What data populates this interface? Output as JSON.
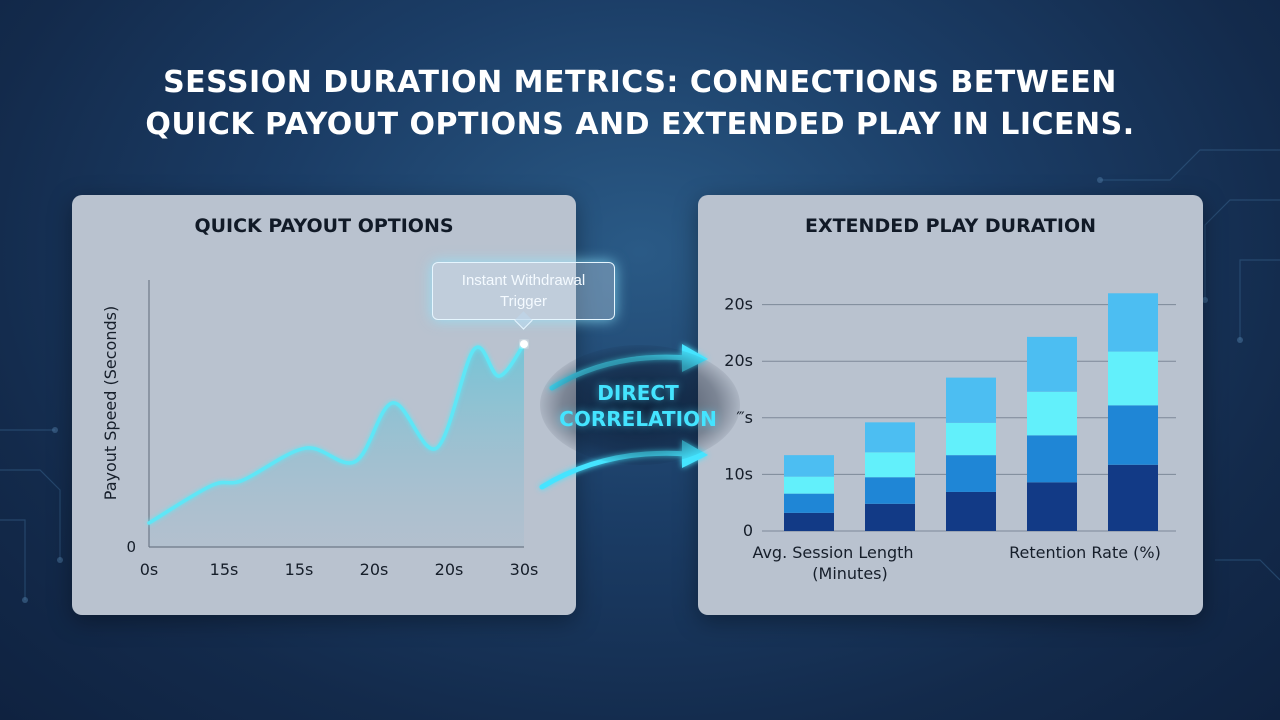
{
  "title": {
    "line1": "SESSION DURATION METRICS: CONNECTIONS BETWEEN",
    "line2": "QUICK PAYOUT OPTIONS AND EXTENDED PLAY IN LICENS."
  },
  "connector": {
    "line1": "DIRECT",
    "line2": "CORRELATION",
    "color": "#44e4ff"
  },
  "chart_data": [
    {
      "type": "area",
      "title": "QUICK PAYOUT OPTIONS",
      "xlabel": "",
      "ylabel": "Payout Speed (Seconds)",
      "x_tick_labels": [
        "0s",
        "15s",
        "15s",
        "20s",
        "20s",
        "30s"
      ],
      "y_tick_labels": [
        "0"
      ],
      "ylim": [
        0,
        10
      ],
      "x": [
        0,
        1,
        1.5,
        2.5,
        3.3,
        3.9,
        4.6,
        5.2,
        5.6,
        6.0
      ],
      "values": [
        0.9,
        2.3,
        2.5,
        3.7,
        3.2,
        5.4,
        3.7,
        7.4,
        6.4,
        7.6
      ],
      "annotation": "Instant Withdrawal Trigger",
      "line_color": "#5fe6f6",
      "grid": false
    },
    {
      "type": "bar",
      "stacked": true,
      "title": "EXTENDED PLAY DURATION",
      "xlabel": "",
      "ylabel": "",
      "y_tick_labels": [
        "0",
        "10s",
        "‴s",
        "20s",
        "20s"
      ],
      "ylim": [
        0,
        4.3
      ],
      "category_labels": [
        "Avg. Session Length (Minutes)",
        "Retention Rate (%)"
      ],
      "bars": [
        [
          0.32,
          0.34,
          0.3,
          0.38
        ],
        [
          0.48,
          0.47,
          0.44,
          0.53
        ],
        [
          0.69,
          0.65,
          0.57,
          0.8
        ],
        [
          0.86,
          0.83,
          0.77,
          0.97
        ],
        [
          1.17,
          1.05,
          0.95,
          1.03
        ]
      ],
      "colors": [
        "#123a86",
        "#1f86d6",
        "#62f0fb",
        "#4cbef2"
      ],
      "grid": true
    }
  ]
}
